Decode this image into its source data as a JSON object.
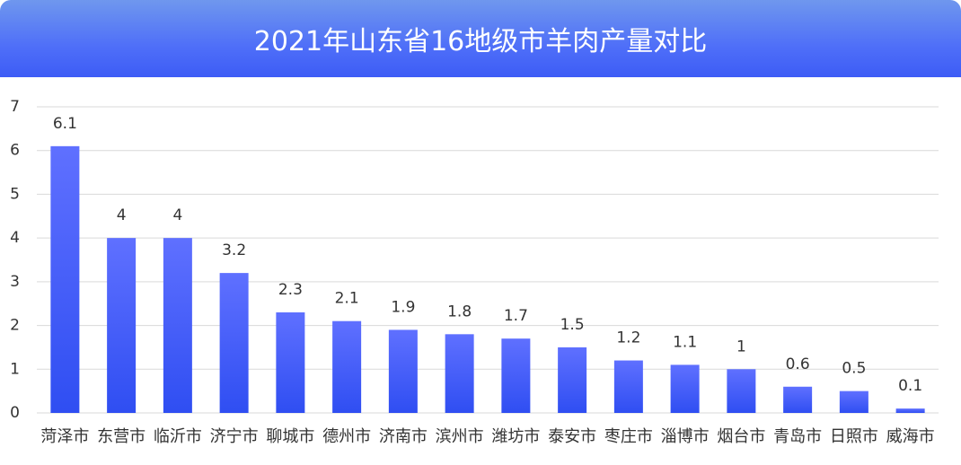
{
  "chart_data": {
    "type": "bar",
    "title": "2021年山东省16地级市羊肉产量对比",
    "categories": [
      "菏泽市",
      "东营市",
      "临沂市",
      "济宁市",
      "聊城市",
      "德州市",
      "济南市",
      "滨州市",
      "潍坊市",
      "泰安市",
      "枣庄市",
      "淄博市",
      "烟台市",
      "青岛市",
      "日照市",
      "威海市"
    ],
    "values": [
      6.1,
      4,
      4,
      3.2,
      2.3,
      2.1,
      1.9,
      1.8,
      1.7,
      1.5,
      1.2,
      1.1,
      1,
      0.6,
      0.5,
      0.1
    ],
    "color": "#3f58f6",
    "ylim": [
      0,
      7
    ],
    "yticks": [
      0,
      1,
      2,
      3,
      4,
      5,
      6,
      7
    ],
    "grid": true
  }
}
